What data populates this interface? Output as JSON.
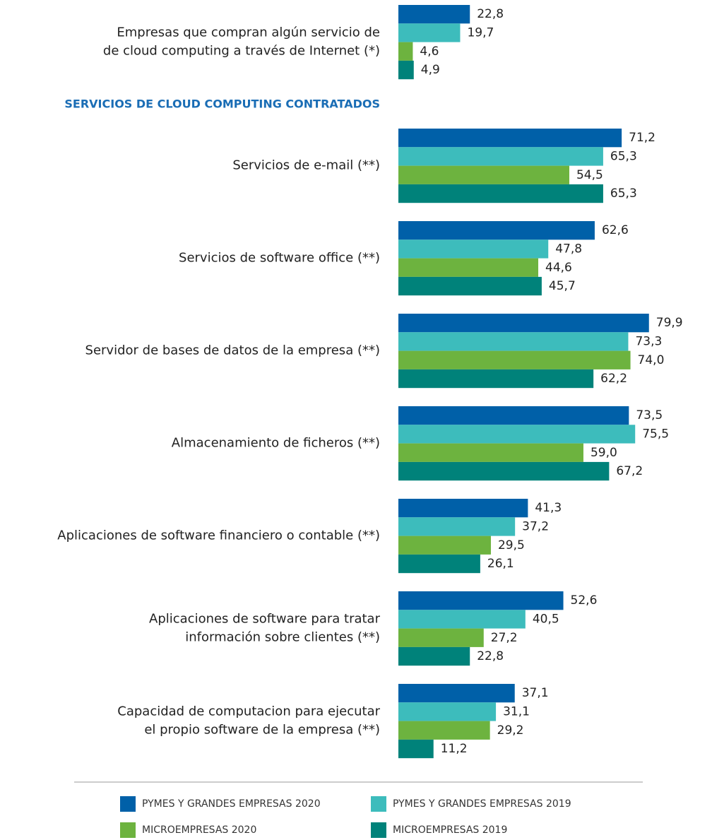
{
  "chart_data": {
    "type": "bar",
    "orientation": "horizontal",
    "section_title": "SERVICIOS DE CLOUD COMPUTING CONTRATADOS",
    "categories": [
      [
        "Empresas que compran algún servicio de",
        "de cloud computing a través de Internet (*)"
      ],
      [
        "Servicios de e-mail (**)"
      ],
      [
        "Servicios de software office (**)"
      ],
      [
        "Servidor de bases de datos de la empresa (**)"
      ],
      [
        "Almacenamiento de ficheros (**)"
      ],
      [
        "Aplicaciones de software financiero o contable (**)"
      ],
      [
        "Aplicaciones de software para tratar",
        "información sobre clientes (**)"
      ],
      [
        "Capacidad de computacion para ejecutar",
        "el propio software de la empresa (**)"
      ]
    ],
    "series": [
      {
        "name": "PYMES Y GRANDES EMPRESAS 2020",
        "color": "#0060a8",
        "values": [
          22.8,
          71.2,
          62.6,
          79.9,
          73.5,
          41.3,
          52.6,
          37.1
        ],
        "value_labels": [
          "22,8",
          "71,2",
          "62,6",
          "79,9",
          "73,5",
          "41,3",
          "52,6",
          "37,1"
        ]
      },
      {
        "name": "PYMES Y GRANDES EMPRESAS 2019",
        "color": "#3dbcbc",
        "values": [
          19.7,
          65.3,
          47.8,
          73.3,
          75.5,
          37.2,
          40.5,
          31.1
        ],
        "value_labels": [
          "19,7",
          "65,3",
          "47,8",
          "73,3",
          "75,5",
          "37,2",
          "40,5",
          "31,1"
        ]
      },
      {
        "name": "MICROEMPRESAS 2020",
        "color": "#6db33f",
        "values": [
          4.6,
          54.5,
          44.6,
          74.0,
          59.0,
          29.5,
          27.2,
          29.2
        ],
        "value_labels": [
          "4,6",
          "54,5",
          "44,6",
          "74,0",
          "59,0",
          "29,5",
          "27,2",
          "29,2"
        ]
      },
      {
        "name": "MICROEMPRESAS 2019",
        "color": "#00827a",
        "values": [
          4.9,
          65.3,
          45.7,
          62.2,
          67.2,
          26.1,
          22.8,
          11.2
        ],
        "value_labels": [
          "4,9",
          "65,3",
          "45,7",
          "62,2",
          "67,2",
          "26,1",
          "22,8",
          "11,2"
        ]
      }
    ]
  }
}
